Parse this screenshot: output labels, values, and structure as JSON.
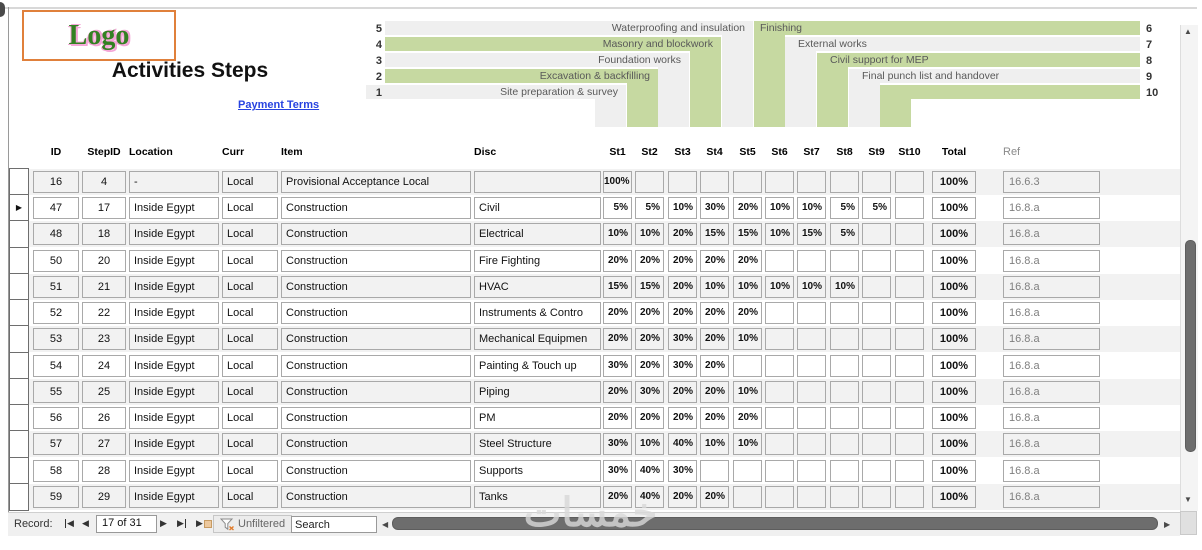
{
  "window": {
    "logo_text": "Logo",
    "title": "Activities Steps",
    "payment_terms_link": "Payment Terms"
  },
  "chart_data": {
    "type": "bar",
    "subtype": "staircase-gantt",
    "stages": [
      "St1",
      "St2",
      "St3",
      "St4",
      "St5",
      "St6",
      "St7",
      "St8",
      "St9",
      "St10"
    ],
    "left_axis_numbers": [
      5,
      4,
      3,
      2,
      1
    ],
    "right_axis_numbers": [
      6,
      7,
      8,
      9,
      10
    ],
    "steps": [
      {
        "num": 1,
        "label": "Site preparation & survey",
        "side": "left",
        "shade": "gray"
      },
      {
        "num": 2,
        "label": "Excavation & backfilling",
        "side": "left",
        "shade": "green"
      },
      {
        "num": 3,
        "label": "Foundation works",
        "side": "left",
        "shade": "gray"
      },
      {
        "num": 4,
        "label": "Masonry and blockwork",
        "side": "left",
        "shade": "green"
      },
      {
        "num": 5,
        "label": "Waterproofing and insulation",
        "side": "left",
        "shade": "gray"
      },
      {
        "num": 6,
        "label": "Finishing",
        "side": "right",
        "shade": "green"
      },
      {
        "num": 7,
        "label": "External works",
        "side": "right",
        "shade": "gray"
      },
      {
        "num": 8,
        "label": "Civil support for MEP",
        "side": "right",
        "shade": "green"
      },
      {
        "num": 9,
        "label": "Final punch list and handover",
        "side": "right",
        "shade": "gray"
      },
      {
        "num": 10,
        "label": "",
        "side": "right",
        "shade": "green"
      }
    ],
    "colors": {
      "green": "#c6d9a1",
      "gray": "#efefef",
      "text": "#595959"
    }
  },
  "table": {
    "columns": [
      "ID",
      "StepID",
      "Location",
      "Curr",
      "Item",
      "Disc",
      "St1",
      "St2",
      "St3",
      "St4",
      "St5",
      "St6",
      "St7",
      "St8",
      "St9",
      "St10",
      "Total",
      "Ref"
    ],
    "rows": [
      {
        "id": "16",
        "step_id": "4",
        "location": "-",
        "curr": "Local",
        "item": "Provisional Acceptance Local",
        "disc": "",
        "st": [
          "100%",
          "",
          "",
          "",
          "",
          "",
          "",
          "",
          "",
          ""
        ],
        "total": "100%",
        "ref": "16.6.3",
        "selected": false
      },
      {
        "id": "47",
        "step_id": "17",
        "location": "Inside Egypt",
        "curr": "Local",
        "item": "Construction",
        "disc": "Civil",
        "st": [
          "5%",
          "5%",
          "10%",
          "30%",
          "20%",
          "10%",
          "10%",
          "5%",
          "5%",
          ""
        ],
        "total": "100%",
        "ref": "16.8.a",
        "selected": true
      },
      {
        "id": "48",
        "step_id": "18",
        "location": "Inside Egypt",
        "curr": "Local",
        "item": "Construction",
        "disc": "Electrical",
        "st": [
          "10%",
          "10%",
          "20%",
          "15%",
          "15%",
          "10%",
          "15%",
          "5%",
          "",
          ""
        ],
        "total": "100%",
        "ref": "16.8.a",
        "selected": false
      },
      {
        "id": "50",
        "step_id": "20",
        "location": "Inside Egypt",
        "curr": "Local",
        "item": "Construction",
        "disc": "Fire Fighting",
        "st": [
          "20%",
          "20%",
          "20%",
          "20%",
          "20%",
          "",
          "",
          "",
          "",
          ""
        ],
        "total": "100%",
        "ref": "16.8.a",
        "selected": false
      },
      {
        "id": "51",
        "step_id": "21",
        "location": "Inside Egypt",
        "curr": "Local",
        "item": "Construction",
        "disc": "HVAC",
        "st": [
          "15%",
          "15%",
          "20%",
          "10%",
          "10%",
          "10%",
          "10%",
          "10%",
          "",
          ""
        ],
        "total": "100%",
        "ref": "16.8.a",
        "selected": false
      },
      {
        "id": "52",
        "step_id": "22",
        "location": "Inside Egypt",
        "curr": "Local",
        "item": "Construction",
        "disc": "Instruments & Contro",
        "st": [
          "20%",
          "20%",
          "20%",
          "20%",
          "20%",
          "",
          "",
          "",
          "",
          ""
        ],
        "total": "100%",
        "ref": "16.8.a",
        "selected": false
      },
      {
        "id": "53",
        "step_id": "23",
        "location": "Inside Egypt",
        "curr": "Local",
        "item": "Construction",
        "disc": "Mechanical Equipmen",
        "st": [
          "20%",
          "20%",
          "30%",
          "20%",
          "10%",
          "",
          "",
          "",
          "",
          ""
        ],
        "total": "100%",
        "ref": "16.8.a",
        "selected": false
      },
      {
        "id": "54",
        "step_id": "24",
        "location": "Inside Egypt",
        "curr": "Local",
        "item": "Construction",
        "disc": "Painting & Touch up",
        "st": [
          "30%",
          "20%",
          "30%",
          "20%",
          "",
          "",
          "",
          "",
          "",
          ""
        ],
        "total": "100%",
        "ref": "16.8.a",
        "selected": false
      },
      {
        "id": "55",
        "step_id": "25",
        "location": "Inside Egypt",
        "curr": "Local",
        "item": "Construction",
        "disc": "Piping",
        "st": [
          "20%",
          "30%",
          "20%",
          "20%",
          "10%",
          "",
          "",
          "",
          "",
          ""
        ],
        "total": "100%",
        "ref": "16.8.a",
        "selected": false
      },
      {
        "id": "56",
        "step_id": "26",
        "location": "Inside Egypt",
        "curr": "Local",
        "item": "Construction",
        "disc": "PM",
        "st": [
          "20%",
          "20%",
          "20%",
          "20%",
          "20%",
          "",
          "",
          "",
          "",
          ""
        ],
        "total": "100%",
        "ref": "16.8.a",
        "selected": false
      },
      {
        "id": "57",
        "step_id": "27",
        "location": "Inside Egypt",
        "curr": "Local",
        "item": "Construction",
        "disc": "Steel Structure",
        "st": [
          "30%",
          "10%",
          "40%",
          "10%",
          "10%",
          "",
          "",
          "",
          "",
          ""
        ],
        "total": "100%",
        "ref": "16.8.a",
        "selected": false
      },
      {
        "id": "58",
        "step_id": "28",
        "location": "Inside Egypt",
        "curr": "Local",
        "item": "Construction",
        "disc": "Supports",
        "st": [
          "30%",
          "40%",
          "30%",
          "",
          "",
          "",
          "",
          "",
          "",
          ""
        ],
        "total": "100%",
        "ref": "16.8.a",
        "selected": false
      },
      {
        "id": "59",
        "step_id": "29",
        "location": "Inside Egypt",
        "curr": "Local",
        "item": "Construction",
        "disc": "Tanks",
        "st": [
          "20%",
          "40%",
          "20%",
          "20%",
          "",
          "",
          "",
          "",
          "",
          ""
        ],
        "total": "100%",
        "ref": "16.8.a",
        "selected": false
      }
    ]
  },
  "status_bar": {
    "record_label": "Record:",
    "record_position": "17 of 31",
    "filter_state": "Unfiltered",
    "search_placeholder": "Search"
  },
  "watermark": "خمسات"
}
